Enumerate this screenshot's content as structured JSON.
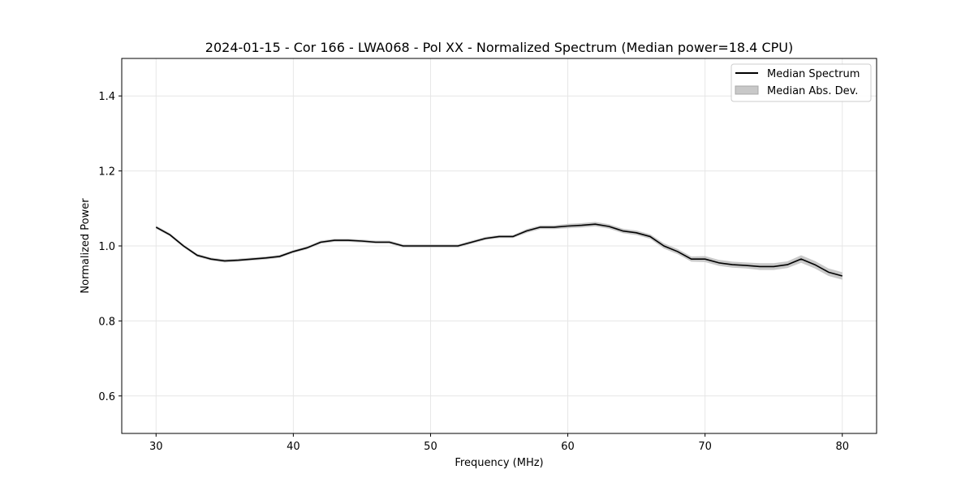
{
  "chart_data": {
    "type": "line",
    "title": "2024-01-15 - Cor 166 - LWA068 - Pol XX - Normalized Spectrum (Median power=18.4 CPU)",
    "xlabel": "Frequency (MHz)",
    "ylabel": "Normalized Power",
    "xlim": [
      27.5,
      82.5
    ],
    "ylim": [
      0.5,
      1.5
    ],
    "xticks": [
      30,
      40,
      50,
      60,
      70,
      80
    ],
    "yticks": [
      0.6,
      0.8,
      1.0,
      1.2,
      1.4
    ],
    "xtick_labels": [
      "30",
      "40",
      "50",
      "60",
      "70",
      "80"
    ],
    "ytick_labels": [
      "0.6",
      "0.8",
      "1.0",
      "1.2",
      "1.4"
    ],
    "grid": true,
    "legend_position": "top-right",
    "legend": [
      "Median Spectrum",
      "Median Abs. Dev."
    ],
    "colors": {
      "line": "#000000",
      "band": "#bfbfbf",
      "grid": "#e6e6e6"
    },
    "series": [
      {
        "name": "Median Spectrum",
        "x": [
          30,
          31,
          32,
          33,
          34,
          35,
          36,
          37,
          38,
          39,
          40,
          41,
          42,
          43,
          44,
          45,
          46,
          47,
          48,
          49,
          50,
          51,
          52,
          53,
          54,
          55,
          56,
          57,
          58,
          59,
          60,
          61,
          62,
          63,
          64,
          65,
          66,
          67,
          68,
          69,
          70,
          71,
          72,
          73,
          74,
          75,
          76,
          77,
          78,
          79,
          80
        ],
        "y": [
          1.05,
          1.03,
          1.0,
          0.975,
          0.965,
          0.96,
          0.962,
          0.965,
          0.968,
          0.972,
          0.985,
          0.995,
          1.01,
          1.015,
          1.015,
          1.013,
          1.01,
          1.01,
          1.0,
          1.0,
          1.0,
          1.0,
          1.0,
          1.01,
          1.02,
          1.025,
          1.025,
          1.04,
          1.05,
          1.05,
          1.053,
          1.055,
          1.058,
          1.052,
          1.04,
          1.035,
          1.025,
          1.0,
          0.985,
          0.965,
          0.965,
          0.955,
          0.95,
          0.948,
          0.945,
          0.945,
          0.95,
          0.965,
          0.95,
          0.93,
          0.92
        ]
      },
      {
        "name": "Median Abs. Dev.",
        "x": [
          30,
          31,
          32,
          33,
          34,
          35,
          36,
          37,
          38,
          39,
          40,
          41,
          42,
          43,
          44,
          45,
          46,
          47,
          48,
          49,
          50,
          51,
          52,
          53,
          54,
          55,
          56,
          57,
          58,
          59,
          60,
          61,
          62,
          63,
          64,
          65,
          66,
          67,
          68,
          69,
          70,
          71,
          72,
          73,
          74,
          75,
          76,
          77,
          78,
          79,
          80
        ],
        "y": [
          0.004,
          0.004,
          0.004,
          0.004,
          0.004,
          0.004,
          0.004,
          0.004,
          0.004,
          0.004,
          0.004,
          0.004,
          0.004,
          0.004,
          0.004,
          0.004,
          0.004,
          0.004,
          0.004,
          0.004,
          0.004,
          0.004,
          0.004,
          0.004,
          0.004,
          0.004,
          0.004,
          0.005,
          0.005,
          0.005,
          0.006,
          0.006,
          0.006,
          0.006,
          0.006,
          0.006,
          0.006,
          0.007,
          0.007,
          0.007,
          0.008,
          0.008,
          0.008,
          0.008,
          0.009,
          0.009,
          0.009,
          0.01,
          0.01,
          0.01,
          0.01
        ]
      }
    ]
  }
}
